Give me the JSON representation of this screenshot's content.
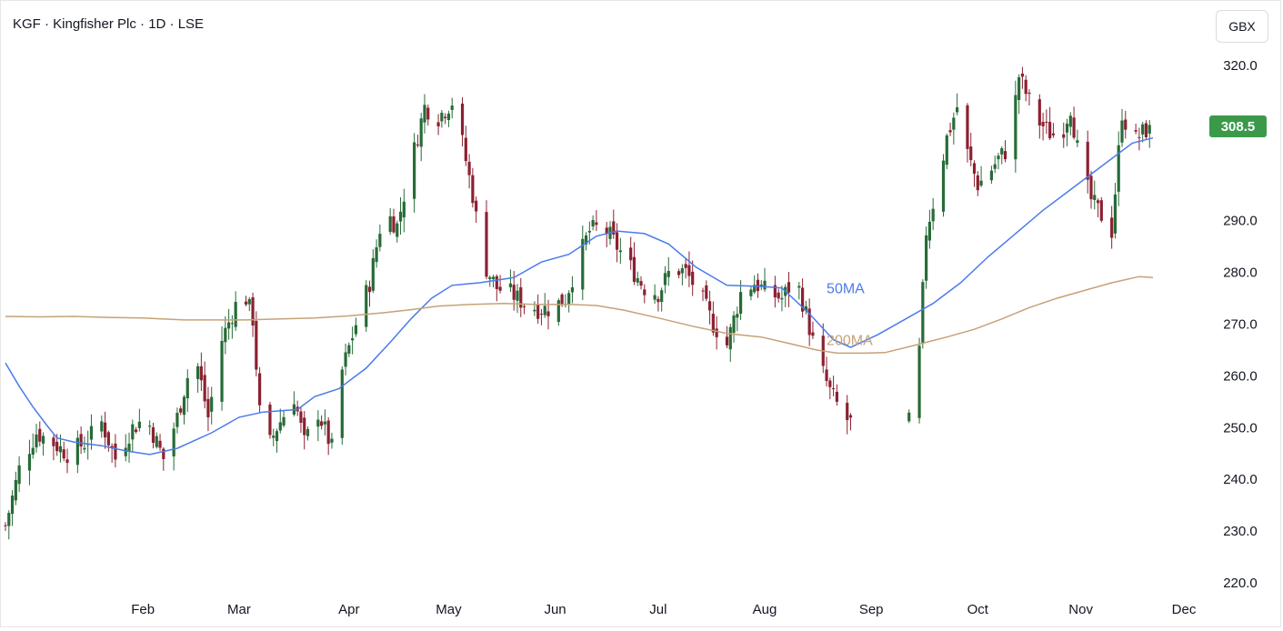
{
  "header": {
    "title": "KGF · Kingfisher Plc · 1D · LSE",
    "currency": "GBX"
  },
  "last_price": {
    "label": "308.5",
    "color": "#3a9a4a"
  },
  "colors": {
    "up": "#276b37",
    "down": "#8b2131",
    "ma50": "#4a7bec",
    "ma200": "#c5a277"
  },
  "chart_data": {
    "type": "candlestick",
    "title": "KGF · Kingfisher Plc · 1D · LSE",
    "y_axis": {
      "ticks": [
        220,
        230,
        240,
        250,
        260,
        270,
        280,
        290,
        300,
        310,
        320
      ],
      "tick_labels": [
        "220.0",
        "230.0",
        "240.0",
        "250.0",
        "260.0",
        "270.0",
        "280.0",
        "290.0",
        "",
        "",
        "320.0"
      ],
      "range": [
        215.5,
        327.5
      ]
    },
    "x_axis": {
      "ticks": [
        14,
        42,
        72,
        104,
        133,
        164,
        195,
        225,
        256,
        287,
        317,
        348
      ],
      "labels": [
        "Feb",
        "Mar",
        "Apr",
        "May",
        "Jun",
        "Jul",
        "Aug",
        "Sep",
        "Oct",
        "Nov",
        "Dec"
      ],
      "label_days": [
        40,
        68,
        100,
        129,
        160,
        190,
        221,
        252,
        283,
        313,
        343
      ],
      "range": [
        0,
        349
      ]
    },
    "anchors": [
      [
        0,
        231
      ],
      [
        4,
        242
      ],
      [
        9,
        249
      ],
      [
        14,
        247
      ],
      [
        18,
        245
      ],
      [
        23,
        247
      ],
      [
        28,
        251
      ],
      [
        32,
        244
      ],
      [
        37,
        250
      ],
      [
        41,
        252
      ],
      [
        46,
        244
      ],
      [
        50,
        252
      ],
      [
        55,
        265
      ],
      [
        59,
        252
      ],
      [
        63,
        267
      ],
      [
        66,
        272
      ],
      [
        69,
        277
      ],
      [
        72,
        271
      ],
      [
        75,
        244
      ],
      [
        79,
        250
      ],
      [
        84,
        256
      ],
      [
        87,
        247
      ],
      [
        91,
        253
      ],
      [
        95,
        246
      ],
      [
        98,
        261
      ],
      [
        102,
        270
      ],
      [
        106,
        278
      ],
      [
        110,
        292
      ],
      [
        114,
        289
      ],
      [
        118,
        301
      ],
      [
        122,
        312
      ],
      [
        126,
        310
      ],
      [
        130,
        313
      ],
      [
        133,
        305
      ],
      [
        136,
        295
      ],
      [
        139,
        282
      ],
      [
        143,
        277
      ],
      [
        147,
        276
      ],
      [
        151,
        274
      ],
      [
        155,
        273
      ],
      [
        159,
        273
      ],
      [
        163,
        275
      ],
      [
        167,
        283
      ],
      [
        170,
        288
      ],
      [
        174,
        289
      ],
      [
        178,
        285
      ],
      [
        182,
        281
      ],
      [
        186,
        277
      ],
      [
        190,
        276
      ],
      [
        194,
        281
      ],
      [
        198,
        280
      ],
      [
        202,
        276
      ],
      [
        206,
        270
      ],
      [
        210,
        266
      ],
      [
        214,
        276
      ],
      [
        218,
        278
      ],
      [
        222,
        276
      ],
      [
        226,
        275
      ],
      [
        230,
        279
      ],
      [
        233,
        272
      ],
      [
        236,
        264
      ],
      [
        240,
        257
      ],
      [
        244,
        252
      ],
      [
        248,
        250
      ],
      [
        252,
        248
      ],
      [
        255,
        245
      ],
      [
        258,
        247
      ],
      [
        262,
        250
      ],
      [
        265,
        253
      ],
      [
        268,
        288
      ],
      [
        271,
        296
      ],
      [
        274,
        306
      ],
      [
        277,
        312
      ],
      [
        280,
        303
      ],
      [
        283,
        297
      ],
      [
        286,
        299
      ],
      [
        289,
        302
      ],
      [
        292,
        304
      ],
      [
        295,
        318
      ],
      [
        298,
        313
      ],
      [
        301,
        309
      ],
      [
        304,
        307
      ],
      [
        307,
        306
      ],
      [
        310,
        312
      ],
      [
        313,
        300
      ],
      [
        316,
        294
      ],
      [
        319,
        291
      ],
      [
        322,
        288
      ],
      [
        325,
        311
      ],
      [
        328,
        305
      ],
      [
        331,
        307
      ],
      [
        334,
        308.5
      ]
    ],
    "gaps": [
      [
        246,
        263
      ],
      [
        320,
        321
      ]
    ],
    "series": [
      {
        "name": "50MA",
        "points": [
          [
            0,
            262.5
          ],
          [
            4,
            258
          ],
          [
            8,
            254
          ],
          [
            12,
            250.5
          ],
          [
            15,
            248
          ],
          [
            20,
            247.2
          ],
          [
            28,
            246.5
          ],
          [
            35,
            245.5
          ],
          [
            42,
            244.8
          ],
          [
            50,
            246
          ],
          [
            60,
            249
          ],
          [
            68,
            252
          ],
          [
            75,
            253
          ],
          [
            85,
            253.5
          ],
          [
            90,
            256
          ],
          [
            97,
            257.5
          ],
          [
            105,
            261.5
          ],
          [
            112,
            266.5
          ],
          [
            118,
            271
          ],
          [
            124,
            275
          ],
          [
            130,
            277.5
          ],
          [
            138,
            278
          ],
          [
            148,
            279
          ],
          [
            156,
            282
          ],
          [
            164,
            283.5
          ],
          [
            172,
            287
          ],
          [
            178,
            288
          ],
          [
            186,
            287.5
          ],
          [
            193,
            285.5
          ],
          [
            201,
            281
          ],
          [
            210,
            277.5
          ],
          [
            220,
            277.3
          ],
          [
            226,
            277
          ],
          [
            234,
            272
          ],
          [
            241,
            267
          ],
          [
            246,
            265.5
          ],
          [
            254,
            268
          ],
          [
            262,
            271
          ],
          [
            270,
            274
          ],
          [
            278,
            278
          ],
          [
            286,
            283
          ],
          [
            294,
            287.5
          ],
          [
            302,
            292
          ],
          [
            312,
            297
          ],
          [
            320,
            301
          ],
          [
            328,
            305
          ],
          [
            334,
            306
          ]
        ]
      },
      {
        "name": "200MA",
        "points": [
          [
            0,
            271.5
          ],
          [
            10,
            271.4
          ],
          [
            20,
            271.5
          ],
          [
            30,
            271.3
          ],
          [
            40,
            271.2
          ],
          [
            52,
            270.8
          ],
          [
            60,
            270.8
          ],
          [
            70,
            270.8
          ],
          [
            80,
            271
          ],
          [
            90,
            271.2
          ],
          [
            100,
            271.6
          ],
          [
            110,
            272.2
          ],
          [
            118,
            272.8
          ],
          [
            126,
            273.5
          ],
          [
            135,
            273.8
          ],
          [
            145,
            274
          ],
          [
            155,
            273.8
          ],
          [
            165,
            273.8
          ],
          [
            172,
            273.6
          ],
          [
            180,
            272.7
          ],
          [
            190,
            271.2
          ],
          [
            200,
            269.6
          ],
          [
            210,
            268.2
          ],
          [
            220,
            267.5
          ],
          [
            228,
            266.3
          ],
          [
            236,
            265
          ],
          [
            242,
            264.4
          ],
          [
            250,
            264.4
          ],
          [
            256,
            264.5
          ],
          [
            264,
            265.8
          ],
          [
            274,
            267.5
          ],
          [
            282,
            269
          ],
          [
            290,
            271
          ],
          [
            298,
            273.2
          ],
          [
            306,
            275
          ],
          [
            314,
            276.5
          ],
          [
            322,
            278
          ],
          [
            330,
            279.2
          ],
          [
            334,
            279
          ]
        ]
      }
    ],
    "annotations": [
      {
        "text": "50MA",
        "day": 239,
        "price": 276,
        "color_key": "ma50"
      },
      {
        "text": "200MA",
        "day": 239,
        "price": 266,
        "color_key": "ma200"
      }
    ]
  }
}
